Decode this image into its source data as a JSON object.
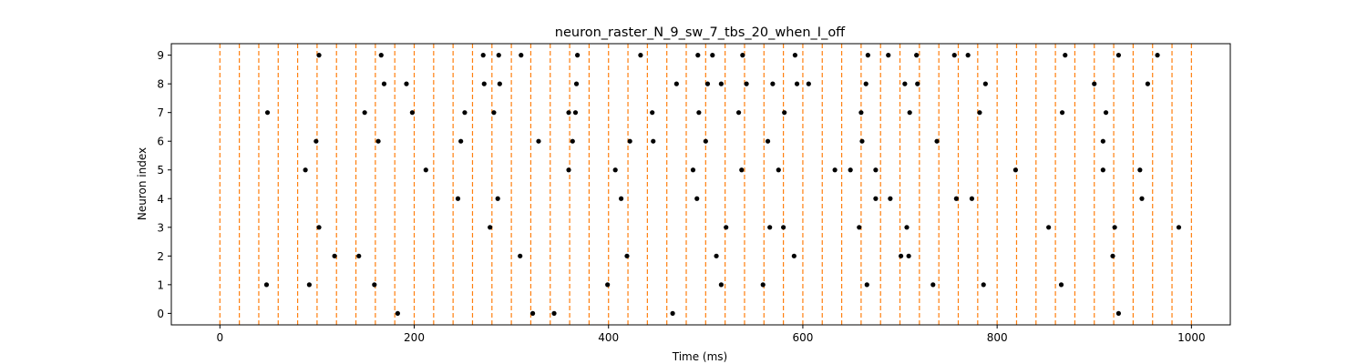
{
  "chart_data": {
    "type": "scatter",
    "title": "neuron_raster_N_9_sw_7_tbs_20_when_I_off",
    "xlabel": "Time (ms)",
    "ylabel": "Neuron index",
    "xlim": [
      -50,
      1040
    ],
    "ylim": [
      -0.4,
      9.4
    ],
    "xticks": [
      0,
      200,
      400,
      600,
      800,
      1000
    ],
    "yticks": [
      0,
      1,
      2,
      3,
      4,
      5,
      6,
      7,
      8,
      9
    ],
    "grid": false,
    "marker_color": "#000000",
    "vline_color": "#ff7f0e",
    "time_bin_lines": [
      0,
      20,
      40,
      60,
      80,
      100,
      120,
      140,
      160,
      180,
      200,
      220,
      240,
      260,
      280,
      300,
      320,
      340,
      360,
      380,
      400,
      420,
      440,
      460,
      480,
      500,
      520,
      540,
      560,
      580,
      600,
      620,
      640,
      660,
      680,
      700,
      720,
      740,
      760,
      780,
      800,
      820,
      840,
      860,
      880,
      900,
      920,
      940,
      960,
      980,
      1000
    ],
    "spikes": [
      {
        "neuron": 9,
        "times": [
          102,
          166,
          271,
          287,
          310,
          368,
          433,
          492,
          507,
          538,
          592,
          667,
          688,
          717,
          756,
          770,
          870,
          925,
          965
        ]
      },
      {
        "neuron": 8,
        "times": [
          169,
          192,
          272,
          288,
          367,
          470,
          502,
          516,
          542,
          569,
          594,
          606,
          665,
          705,
          718,
          788,
          900,
          955
        ]
      },
      {
        "neuron": 7,
        "times": [
          49,
          149,
          198,
          252,
          282,
          359,
          366,
          445,
          493,
          534,
          581,
          660,
          710,
          782,
          867,
          912
        ]
      },
      {
        "neuron": 6,
        "times": [
          99,
          163,
          248,
          328,
          363,
          422,
          446,
          500,
          564,
          661,
          738,
          909
        ]
      },
      {
        "neuron": 5,
        "times": [
          88,
          212,
          359,
          407,
          487,
          537,
          575,
          633,
          649,
          675,
          819,
          909,
          947
        ]
      },
      {
        "neuron": 4,
        "times": [
          245,
          286,
          413,
          491,
          675,
          690,
          758,
          774,
          949
        ]
      },
      {
        "neuron": 3,
        "times": [
          102,
          278,
          521,
          566,
          580,
          658,
          707,
          853,
          921,
          987
        ]
      },
      {
        "neuron": 2,
        "times": [
          118,
          143,
          309,
          419,
          511,
          591,
          701,
          709,
          919
        ]
      },
      {
        "neuron": 1,
        "times": [
          48,
          92,
          159,
          399,
          516,
          559,
          666,
          734,
          786,
          866
        ]
      },
      {
        "neuron": 0,
        "times": [
          183,
          322,
          344,
          466,
          925
        ]
      }
    ]
  }
}
